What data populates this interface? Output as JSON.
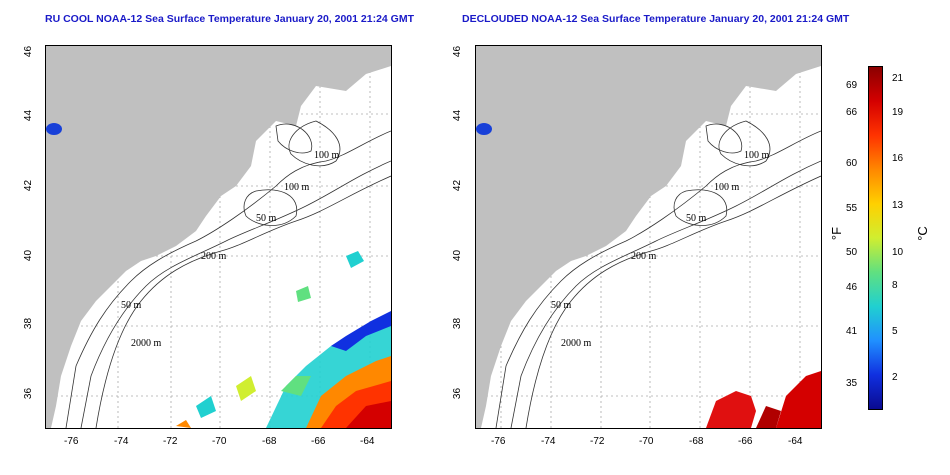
{
  "panels": [
    {
      "title": "RU COOL NOAA-12 Sea Surface Temperature January 20, 2001 21:24 GMT"
    },
    {
      "title": "DECLOUDED NOAA-12 Sea Surface Temperature January 20, 2001 21:24 GMT"
    }
  ],
  "axes": {
    "x_ticks": [
      "-76",
      "-74",
      "-72",
      "-70",
      "-68",
      "-66",
      "-64"
    ],
    "y_ticks": [
      "46",
      "44",
      "42",
      "40",
      "38",
      "36"
    ]
  },
  "contours": {
    "left": [
      "100 m",
      "100 m",
      "50 m",
      "200 m",
      "50 m",
      "2000 m"
    ],
    "right": [
      "100 m",
      "100 m",
      "50 m",
      "200 m",
      "50 m",
      "2000 m"
    ]
  },
  "colorbar": {
    "f_unit": "°F",
    "c_unit": "°C",
    "f_ticks": [
      "69",
      "66",
      "60",
      "55",
      "50",
      "46",
      "41",
      "35"
    ],
    "c_ticks": [
      "21",
      "19",
      "16",
      "13",
      "10",
      "8",
      "5",
      "2"
    ],
    "colors": [
      "#8b0000",
      "#d40000",
      "#ff3300",
      "#ff8800",
      "#ffd000",
      "#d0ee30",
      "#60e080",
      "#20d0d0",
      "#2090ff",
      "#1030e0",
      "#0a0a90"
    ]
  },
  "colors": {
    "land": "#c0c0c0",
    "title": "#1a1ac8"
  }
}
